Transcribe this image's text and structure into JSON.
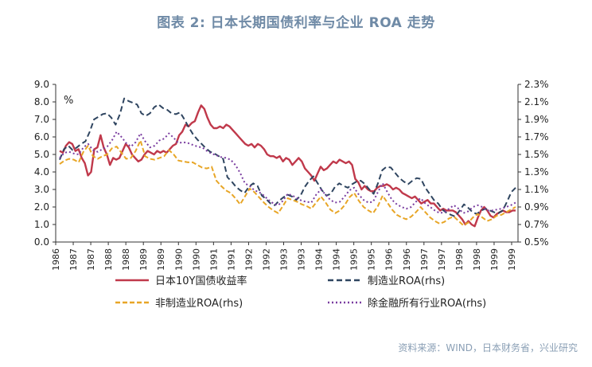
{
  "title": "图表 2: 日本长期国债利率与企业 ROA 走势",
  "source": "资料来源：WIND，日本财务省，兴业研究",
  "chart_data": {
    "type": "line",
    "unit_label": "%",
    "y_left": {
      "min": 0,
      "max": 9,
      "step": 1,
      "tick_labels": [
        "0.0",
        "1.0",
        "2.0",
        "3.0",
        "4.0",
        "5.0",
        "6.0",
        "7.0",
        "8.0",
        "9.0"
      ]
    },
    "y_right": {
      "min": 0.5,
      "max": 2.3,
      "step": 0.2,
      "tick_labels": [
        "0.5%",
        "0.7%",
        "0.9%",
        "1.1%",
        "1.3%",
        "1.5%",
        "1.7%",
        "1.9%",
        "2.1%",
        "2.3%"
      ]
    },
    "x_tick_labels": [
      "1986",
      "1987",
      "1987",
      "1988",
      "1988",
      "1989",
      "1989",
      "1990",
      "1990",
      "1991",
      "1991",
      "1992",
      "1992",
      "1993",
      "1993",
      "1994",
      "1994",
      "1995",
      "1995",
      "1996",
      "1996",
      "1997",
      "1997",
      "1998",
      "1998",
      "1999",
      "1999"
    ],
    "colors": {
      "jgb": "#c0394b",
      "mfg": "#2f4560",
      "nonmfg": "#e8a627",
      "allx": "#7a3da0"
    },
    "series": [
      {
        "name": "日本10Y国债收益率",
        "axis": "left",
        "style": "solid",
        "values": [
          5.2,
          5.1,
          5.5,
          5.7,
          5.6,
          5.2,
          5.3,
          4.8,
          4.5,
          3.8,
          4.0,
          5.3,
          5.4,
          6.1,
          5.4,
          5.0,
          4.4,
          4.8,
          4.7,
          4.8,
          5.2,
          5.6,
          5.4,
          5.0,
          4.8,
          4.6,
          4.7,
          5.0,
          5.2,
          5.1,
          5.0,
          5.2,
          5.1,
          5.2,
          5.1,
          5.3,
          5.5,
          5.6,
          6.1,
          6.3,
          6.7,
          6.6,
          6.8,
          6.9,
          7.4,
          7.8,
          7.6,
          7.1,
          6.7,
          6.5,
          6.5,
          6.6,
          6.5,
          6.7,
          6.6,
          6.4,
          6.2,
          6.0,
          5.8,
          5.6,
          5.5,
          5.6,
          5.4,
          5.6,
          5.5,
          5.3,
          5.0,
          4.9,
          4.9,
          4.8,
          4.9,
          4.6,
          4.8,
          4.7,
          4.4,
          4.6,
          4.8,
          4.6,
          4.2,
          4.0,
          3.8,
          3.5,
          3.9,
          4.3,
          4.1,
          4.2,
          4.4,
          4.6,
          4.5,
          4.7,
          4.6,
          4.5,
          4.6,
          4.4,
          3.6,
          3.4,
          3.0,
          3.2,
          3.0,
          2.9,
          2.9,
          3.1,
          3.2,
          3.2,
          3.3,
          3.2,
          3.0,
          3.1,
          3.0,
          2.8,
          2.7,
          2.6,
          2.5,
          2.6,
          2.4,
          2.2,
          2.3,
          2.4,
          2.2,
          2.2,
          2.0,
          1.8,
          1.9,
          1.8,
          1.8,
          1.8,
          1.7,
          1.5,
          1.3,
          1.0,
          1.2,
          1.0,
          0.9,
          1.4,
          1.8,
          2.0,
          1.8,
          1.5,
          1.4,
          1.6,
          1.7,
          1.8,
          1.7,
          1.7,
          1.8,
          1.8
        ]
      },
      {
        "name": "制造业ROA(rhs)",
        "axis": "right",
        "style": "dash",
        "values": [
          1.44,
          1.56,
          1.6,
          1.55,
          1.58,
          1.62,
          1.65,
          1.76,
          1.9,
          1.93,
          1.96,
          1.97,
          1.92,
          1.84,
          1.96,
          2.14,
          2.11,
          2.09,
          2.07,
          1.97,
          1.94,
          1.97,
          2.04,
          2.07,
          2.03,
          2.01,
          1.97,
          1.96,
          1.98,
          1.9,
          1.81,
          1.73,
          1.67,
          1.62,
          1.57,
          1.53,
          1.51,
          1.48,
          1.45,
          1.24,
          1.19,
          1.13,
          1.09,
          1.06,
          1.13,
          1.17,
          1.14,
          1.03,
          0.99,
          0.94,
          0.92,
          0.97,
          1.01,
          1.04,
          1.02,
          0.98,
          1.03,
          1.13,
          1.2,
          1.25,
          1.17,
          1.09,
          1.03,
          1.05,
          1.13,
          1.17,
          1.14,
          1.12,
          1.16,
          1.19,
          1.2,
          1.16,
          1.1,
          1.05,
          1.17,
          1.32,
          1.36,
          1.35,
          1.29,
          1.23,
          1.19,
          1.16,
          1.2,
          1.23,
          1.22,
          1.12,
          1.05,
          0.98,
          0.94,
          0.87,
          0.83,
          0.81,
          0.79,
          0.86,
          0.93,
          0.89,
          0.84,
          0.82,
          0.86,
          0.88,
          0.86,
          0.84,
          0.83,
          0.86,
          0.96,
          1.07,
          1.12
        ]
      },
      {
        "name": "非制造业ROA(rhs)",
        "axis": "right",
        "style": "dash",
        "values": [
          1.39,
          1.43,
          1.45,
          1.44,
          1.41,
          1.53,
          1.6,
          1.48,
          1.45,
          1.48,
          1.5,
          1.57,
          1.59,
          1.52,
          1.45,
          1.46,
          1.54,
          1.66,
          1.48,
          1.45,
          1.44,
          1.46,
          1.48,
          1.55,
          1.5,
          1.43,
          1.42,
          1.41,
          1.41,
          1.38,
          1.35,
          1.34,
          1.36,
          1.2,
          1.14,
          1.09,
          1.06,
          1.0,
          0.93,
          1.02,
          1.11,
          1.07,
          1.01,
          0.95,
          0.9,
          0.86,
          0.83,
          0.91,
          1.0,
          0.98,
          0.96,
          0.93,
          0.91,
          0.88,
          0.95,
          1.02,
          0.95,
          0.87,
          0.83,
          0.86,
          0.92,
          1.01,
          1.06,
          0.97,
          0.9,
          0.86,
          0.83,
          0.91,
          1.03,
          0.95,
          0.87,
          0.81,
          0.78,
          0.76,
          0.79,
          0.84,
          0.9,
          0.84,
          0.78,
          0.74,
          0.71,
          0.73,
          0.77,
          0.79,
          0.74,
          0.69,
          0.72,
          0.78,
          0.82,
          0.78,
          0.74,
          0.76,
          0.8,
          0.81,
          0.84,
          0.87,
          0.9
        ]
      },
      {
        "name": "除金融所有行业ROA(rhs)",
        "axis": "right",
        "style": "dot",
        "values": [
          1.46,
          1.52,
          1.53,
          1.51,
          1.5,
          1.58,
          1.62,
          1.55,
          1.53,
          1.56,
          1.59,
          1.66,
          1.76,
          1.7,
          1.63,
          1.59,
          1.64,
          1.74,
          1.65,
          1.58,
          1.6,
          1.66,
          1.68,
          1.74,
          1.69,
          1.63,
          1.64,
          1.63,
          1.61,
          1.59,
          1.58,
          1.54,
          1.51,
          1.49,
          1.47,
          1.46,
          1.44,
          1.38,
          1.29,
          1.17,
          1.14,
          1.09,
          1.07,
          1.03,
          0.98,
          0.94,
          0.92,
          0.97,
          1.05,
          1.03,
          1.0,
          0.97,
          0.96,
          0.95,
          1.04,
          1.1,
          1.04,
          0.98,
          0.95,
          0.96,
          1.02,
          1.09,
          1.12,
          1.04,
          0.98,
          0.95,
          0.96,
          1.07,
          1.17,
          1.07,
          0.98,
          0.93,
          0.9,
          0.88,
          0.9,
          0.96,
          1.0,
          0.94,
          0.9,
          0.86,
          0.83,
          0.84,
          0.88,
          0.92,
          0.88,
          0.83,
          0.85,
          0.9,
          0.92,
          0.9,
          0.86,
          0.86,
          0.87,
          0.88,
          0.9,
          0.92,
          0.95
        ]
      }
    ]
  }
}
